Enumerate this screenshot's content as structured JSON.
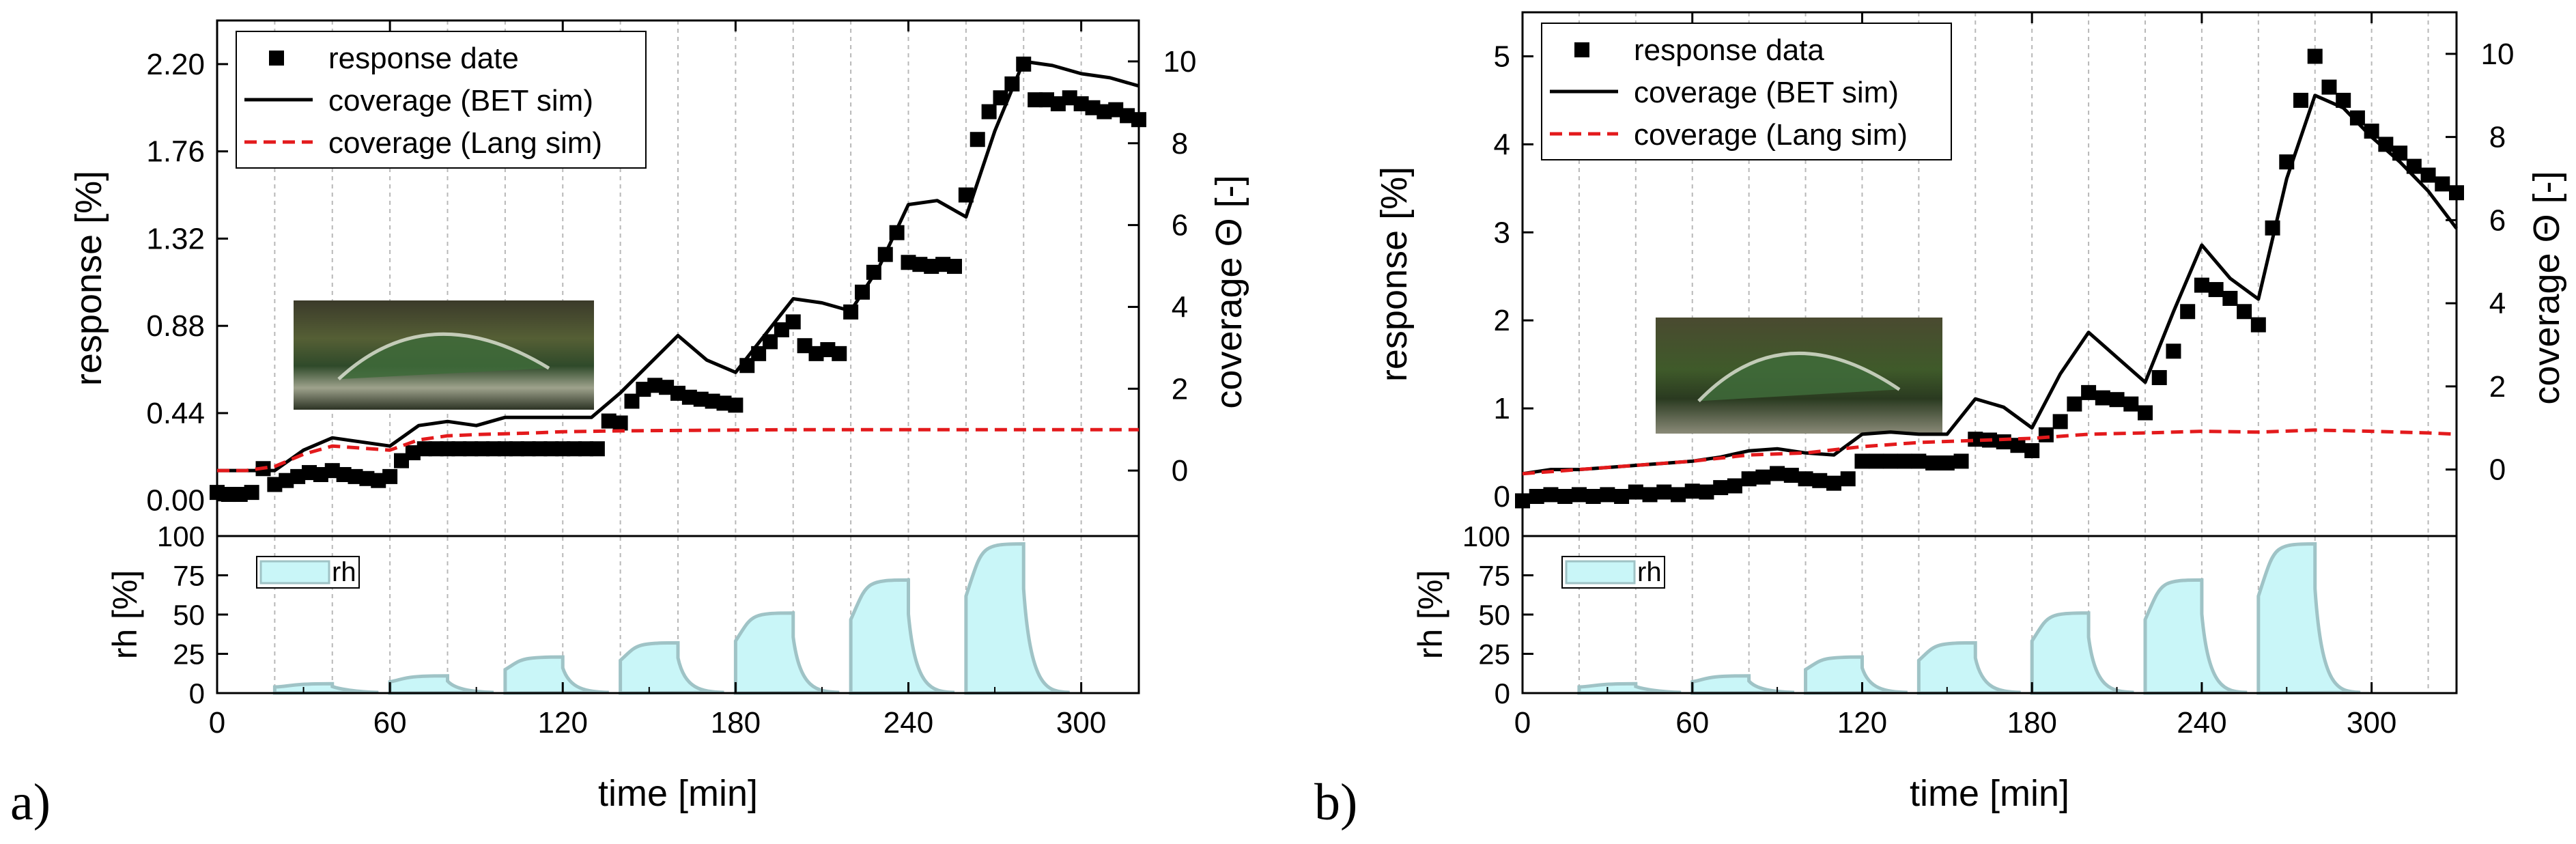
{
  "chart_data": [
    {
      "panel_label": "a)",
      "type": "line",
      "xlabel": "time [min]",
      "xlim": [
        0,
        320
      ],
      "xticks": [
        0,
        60,
        120,
        180,
        240,
        300
      ],
      "upper": {
        "ylabel": "response [%]",
        "ylim": [
          -0.18,
          2.42
        ],
        "yticks": [
          "0.00",
          "0.44",
          "0.88",
          "1.32",
          "1.76",
          "2.20"
        ],
        "y2label": "coverage Θ [-]",
        "y2lim": [
          -1.6,
          11.0
        ],
        "y2ticks": [
          0,
          2,
          4,
          6,
          8,
          10
        ],
        "legend_position": "top-left",
        "series": [
          {
            "name": "response date",
            "kind": "markers",
            "axis": "left",
            "color": "#000000",
            "x": [
              0,
              4,
              8,
              12,
              16,
              20,
              24,
              28,
              32,
              36,
              40,
              44,
              48,
              52,
              56,
              60,
              64,
              68,
              72,
              76,
              80,
              84,
              88,
              92,
              96,
              100,
              104,
              108,
              112,
              116,
              120,
              124,
              128,
              132,
              136,
              140,
              144,
              148,
              152,
              156,
              160,
              164,
              168,
              172,
              176,
              180,
              184,
              188,
              192,
              196,
              200,
              204,
              208,
              212,
              216,
              220,
              224,
              228,
              232,
              236,
              240,
              244,
              248,
              252,
              256,
              260,
              264,
              268,
              272,
              276,
              280,
              284,
              288,
              292,
              296,
              300,
              304,
              308,
              312,
              316,
              320
            ],
            "y": [
              0.04,
              0.03,
              0.03,
              0.04,
              0.16,
              0.08,
              0.1,
              0.12,
              0.14,
              0.13,
              0.15,
              0.13,
              0.12,
              0.11,
              0.1,
              0.12,
              0.2,
              0.24,
              0.26,
              0.26,
              0.26,
              0.26,
              0.26,
              0.26,
              0.26,
              0.26,
              0.26,
              0.26,
              0.26,
              0.26,
              0.26,
              0.26,
              0.26,
              0.26,
              0.4,
              0.39,
              0.5,
              0.56,
              0.58,
              0.57,
              0.54,
              0.52,
              0.51,
              0.5,
              0.49,
              0.48,
              0.68,
              0.74,
              0.8,
              0.86,
              0.9,
              0.78,
              0.74,
              0.76,
              0.74,
              0.95,
              1.05,
              1.15,
              1.24,
              1.35,
              1.2,
              1.19,
              1.18,
              1.19,
              1.18,
              1.54,
              1.82,
              1.96,
              2.03,
              2.1,
              2.2,
              2.02,
              2.02,
              2.0,
              2.03,
              2.0,
              1.98,
              1.96,
              1.97,
              1.94,
              1.92
            ]
          },
          {
            "name": "coverage (BET sim)",
            "kind": "line",
            "axis": "right",
            "color": "#000000",
            "x": [
              0,
              10,
              20,
              30,
              40,
              50,
              60,
              70,
              80,
              90,
              100,
              110,
              120,
              130,
              140,
              150,
              160,
              170,
              180,
              190,
              200,
              210,
              220,
              230,
              240,
              250,
              260,
              270,
              280,
              290,
              300,
              310,
              320
            ],
            "y": [
              0.0,
              0.0,
              0.0,
              0.5,
              0.8,
              0.7,
              0.6,
              1.1,
              1.2,
              1.1,
              1.3,
              1.3,
              1.3,
              1.3,
              1.9,
              2.6,
              3.3,
              2.7,
              2.4,
              3.3,
              4.2,
              4.1,
              3.9,
              5.0,
              6.5,
              6.6,
              6.2,
              8.3,
              10.0,
              9.9,
              9.7,
              9.6,
              9.4
            ]
          },
          {
            "name": "coverage (Lang sim)",
            "kind": "dashed-line",
            "axis": "right",
            "color": "#e31a1c",
            "x": [
              0,
              10,
              20,
              30,
              40,
              50,
              60,
              70,
              80,
              90,
              100,
              110,
              120,
              140,
              160,
              180,
              200,
              220,
              240,
              260,
              280,
              300,
              320
            ],
            "y": [
              0.0,
              0.0,
              0.1,
              0.4,
              0.6,
              0.55,
              0.5,
              0.75,
              0.85,
              0.88,
              0.9,
              0.92,
              0.95,
              0.97,
              0.98,
              0.99,
              1.0,
              1.0,
              1.0,
              1.0,
              1.0,
              1.0,
              1.0
            ]
          }
        ]
      },
      "lower": {
        "ylabel": "rh [%]",
        "ylim": [
          0,
          100
        ],
        "yticks": [
          0,
          25,
          50,
          75,
          100
        ],
        "legend_position": "top-left",
        "series": [
          {
            "name": "rh",
            "kind": "area",
            "color": "#c9f6f8",
            "edge_color": "#9fc3c6",
            "pulses": [
              {
                "start": 20,
                "end": 40,
                "level": 6
              },
              {
                "start": 60,
                "end": 80,
                "level": 11
              },
              {
                "start": 100,
                "end": 120,
                "level": 23
              },
              {
                "start": 140,
                "end": 160,
                "level": 32
              },
              {
                "start": 180,
                "end": 200,
                "level": 51
              },
              {
                "start": 220,
                "end": 240,
                "level": 72
              },
              {
                "start": 260,
                "end": 280,
                "level": 95
              }
            ]
          }
        ]
      }
    },
    {
      "panel_label": "b)",
      "type": "line",
      "xlabel": "time [min]",
      "xlim": [
        0,
        330
      ],
      "xticks": [
        0,
        60,
        120,
        180,
        240,
        300
      ],
      "upper": {
        "ylabel": "response [%]",
        "ylim": [
          -0.45,
          5.5
        ],
        "yticks": [
          0,
          1,
          2,
          3,
          4,
          5
        ],
        "y2label": "coverage Θ [-]",
        "y2lim": [
          -1.6,
          11.0
        ],
        "y2ticks": [
          0,
          2,
          4,
          6,
          8,
          10
        ],
        "legend_position": "top-left",
        "series": [
          {
            "name": "response data",
            "kind": "markers",
            "axis": "left",
            "color": "#000000",
            "x": [
              0,
              5,
              10,
              15,
              20,
              25,
              30,
              35,
              40,
              45,
              50,
              55,
              60,
              65,
              70,
              75,
              80,
              85,
              90,
              95,
              100,
              105,
              110,
              115,
              120,
              125,
              130,
              135,
              140,
              145,
              150,
              155,
              160,
              165,
              170,
              175,
              180,
              185,
              190,
              195,
              200,
              205,
              210,
              215,
              220,
              225,
              230,
              235,
              240,
              245,
              250,
              255,
              260,
              265,
              270,
              275,
              280,
              285,
              290,
              295,
              300,
              305,
              310,
              315,
              320,
              325,
              330
            ],
            "y": [
              -0.05,
              0.0,
              0.02,
              0.0,
              0.02,
              0.0,
              0.02,
              0.0,
              0.05,
              0.02,
              0.05,
              0.02,
              0.06,
              0.05,
              0.1,
              0.12,
              0.2,
              0.22,
              0.26,
              0.24,
              0.2,
              0.18,
              0.15,
              0.2,
              0.4,
              0.4,
              0.4,
              0.4,
              0.4,
              0.38,
              0.38,
              0.4,
              0.65,
              0.64,
              0.62,
              0.58,
              0.52,
              0.7,
              0.85,
              1.05,
              1.18,
              1.12,
              1.1,
              1.05,
              0.95,
              1.35,
              1.65,
              2.1,
              2.4,
              2.35,
              2.25,
              2.1,
              1.95,
              3.05,
              3.8,
              4.5,
              5.0,
              4.65,
              4.5,
              4.3,
              4.15,
              4.0,
              3.9,
              3.75,
              3.65,
              3.55,
              3.45
            ]
          },
          {
            "name": "coverage (BET sim)",
            "kind": "line",
            "axis": "right",
            "color": "#000000",
            "x": [
              0,
              10,
              20,
              30,
              40,
              50,
              60,
              70,
              80,
              90,
              100,
              110,
              120,
              130,
              140,
              150,
              160,
              170,
              180,
              190,
              200,
              210,
              220,
              230,
              240,
              250,
              260,
              270,
              280,
              290,
              300,
              310,
              320,
              330
            ],
            "y": [
              -0.1,
              0.0,
              0.0,
              0.05,
              0.1,
              0.15,
              0.2,
              0.3,
              0.45,
              0.5,
              0.4,
              0.35,
              0.85,
              0.9,
              0.85,
              0.85,
              1.7,
              1.5,
              1.0,
              2.3,
              3.3,
              2.7,
              2.1,
              3.8,
              5.4,
              4.6,
              4.1,
              7.0,
              9.0,
              8.7,
              8.0,
              7.4,
              6.7,
              5.8
            ]
          },
          {
            "name": "coverage (Lang sim)",
            "kind": "dashed-line",
            "axis": "right",
            "color": "#e31a1c",
            "x": [
              0,
              20,
              40,
              60,
              80,
              100,
              120,
              140,
              160,
              180,
              200,
              220,
              240,
              260,
              280,
              300,
              320,
              330
            ],
            "y": [
              -0.1,
              0.0,
              0.1,
              0.2,
              0.35,
              0.4,
              0.55,
              0.65,
              0.7,
              0.75,
              0.85,
              0.88,
              0.92,
              0.9,
              0.95,
              0.92,
              0.88,
              0.85
            ]
          }
        ]
      },
      "lower": {
        "ylabel": "rh [%]",
        "ylim": [
          0,
          100
        ],
        "yticks": [
          0,
          25,
          50,
          75,
          100
        ],
        "legend_position": "top-left",
        "series": [
          {
            "name": "rh",
            "kind": "area",
            "color": "#c9f6f8",
            "edge_color": "#9fc3c6",
            "pulses": [
              {
                "start": 20,
                "end": 40,
                "level": 6
              },
              {
                "start": 60,
                "end": 80,
                "level": 11
              },
              {
                "start": 100,
                "end": 120,
                "level": 23
              },
              {
                "start": 140,
                "end": 160,
                "level": 32
              },
              {
                "start": 180,
                "end": 200,
                "level": 51
              },
              {
                "start": 220,
                "end": 240,
                "level": 72
              },
              {
                "start": 260,
                "end": 280,
                "level": 95
              }
            ]
          }
        ]
      }
    }
  ]
}
